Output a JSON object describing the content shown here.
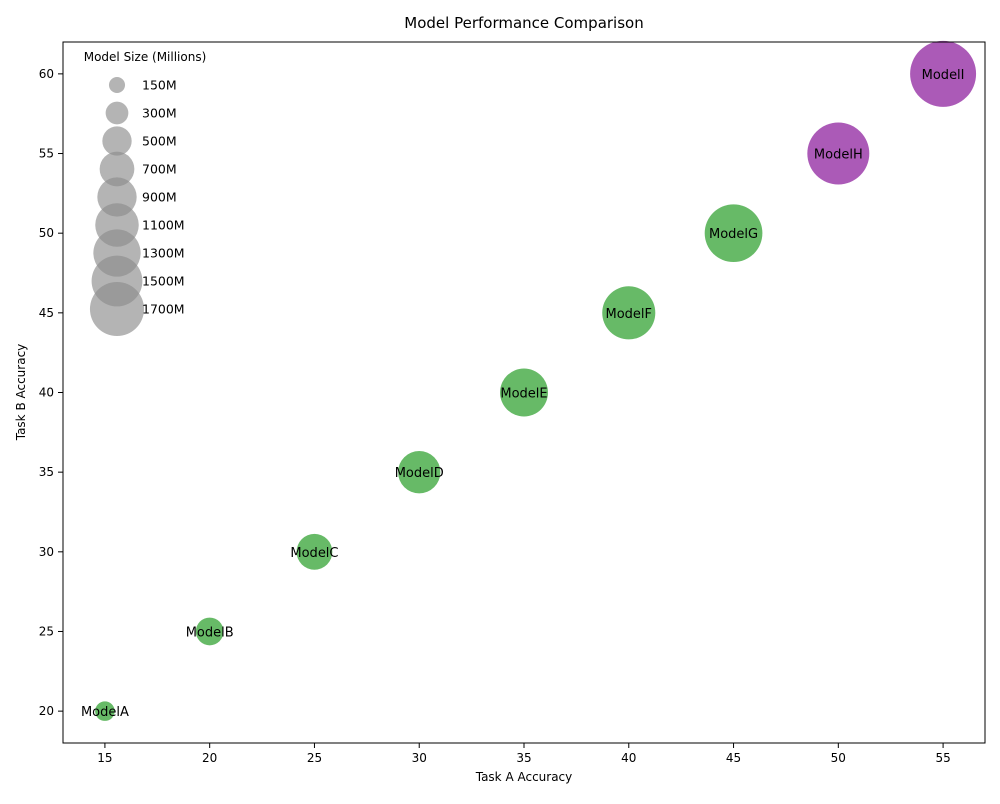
{
  "chart_data": {
    "type": "scatter",
    "title": "Model Performance Comparison",
    "xlabel": "Task A Accuracy",
    "ylabel": "Task B Accuracy",
    "xlim": [
      13,
      57
    ],
    "ylim": [
      18,
      62
    ],
    "xticks": [
      15,
      20,
      25,
      30,
      35,
      40,
      45,
      50,
      55
    ],
    "yticks": [
      20,
      25,
      30,
      35,
      40,
      45,
      50,
      55,
      60
    ],
    "grid": false,
    "colors": {
      "green": "#2ca02c",
      "purple": "#8b1a9b",
      "legend_gray": "#8c8c8c"
    },
    "points": [
      {
        "label": "ModelA",
        "x": 15,
        "y": 20,
        "size_m": 150,
        "color": "#2ca02c"
      },
      {
        "label": "ModelB",
        "x": 20,
        "y": 25,
        "size_m": 300,
        "color": "#2ca02c"
      },
      {
        "label": "ModelC",
        "x": 25,
        "y": 30,
        "size_m": 500,
        "color": "#2ca02c"
      },
      {
        "label": "ModelD",
        "x": 30,
        "y": 35,
        "size_m": 700,
        "color": "#2ca02c"
      },
      {
        "label": "ModelE",
        "x": 35,
        "y": 40,
        "size_m": 900,
        "color": "#2ca02c"
      },
      {
        "label": "ModelF",
        "x": 40,
        "y": 45,
        "size_m": 1100,
        "color": "#2ca02c"
      },
      {
        "label": "ModelG",
        "x": 45,
        "y": 50,
        "size_m": 1300,
        "color": "#2ca02c"
      },
      {
        "label": "ModelH",
        "x": 50,
        "y": 55,
        "size_m": 1500,
        "color": "#8b1a9b"
      },
      {
        "label": "ModelI",
        "x": 55,
        "y": 60,
        "size_m": 1700,
        "color": "#8b1a9b"
      }
    ],
    "legend": {
      "title": "Model Size (Millions)",
      "placement": "top-left",
      "entries": [
        {
          "label": "150M",
          "size_m": 150
        },
        {
          "label": "300M",
          "size_m": 300
        },
        {
          "label": "500M",
          "size_m": 500
        },
        {
          "label": "700M",
          "size_m": 700
        },
        {
          "label": "900M",
          "size_m": 900
        },
        {
          "label": "1100M",
          "size_m": 1100
        },
        {
          "label": "1300M",
          "size_m": 1300
        },
        {
          "label": "1500M",
          "size_m": 1500
        },
        {
          "label": "1700M",
          "size_m": 1700
        }
      ]
    }
  }
}
